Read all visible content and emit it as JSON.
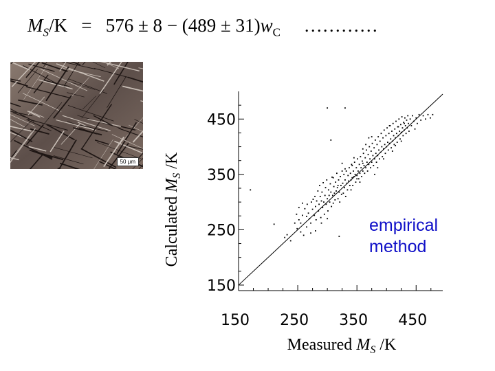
{
  "equation": {
    "lhs_symbol": "M",
    "lhs_subscript": "S",
    "lhs_unit": "/K",
    "equals": "=",
    "constant": "576 ± 8",
    "minus": " − ",
    "coefficient": "(489 ± 31)",
    "variable": "w",
    "variable_subscript": "C",
    "ellipsis": "…………"
  },
  "micrograph": {
    "scale_bar": "50 μm"
  },
  "annotation": {
    "line1": "empirical",
    "line2": "method",
    "color": "#1010c8"
  },
  "chart_data": {
    "type": "scatter",
    "title": "",
    "xlabel": "Measured M_S /K",
    "ylabel": "Calculated M_S /K",
    "xlabel_text": "Measured",
    "ylabel_text": "Calculated",
    "axis_symbol": "M",
    "axis_subscript": "S",
    "axis_unit": "/K",
    "xlim": [
      150,
      495
    ],
    "ylim": [
      140,
      500
    ],
    "xticks": [
      150,
      250,
      350,
      450
    ],
    "yticks": [
      150,
      250,
      350,
      450
    ],
    "grid": false,
    "legend": "none",
    "reference_line": {
      "from": [
        150,
        150
      ],
      "to": [
        495,
        495
      ],
      "label": ""
    },
    "point_color": "#000000",
    "series": [
      {
        "values_xy": [
          [
            170,
            322
          ],
          [
            210,
            260
          ],
          [
            228,
            236
          ],
          [
            238,
            230
          ],
          [
            232,
            241
          ],
          [
            245,
            262
          ],
          [
            249,
            252
          ],
          [
            252,
            268
          ],
          [
            255,
            262
          ],
          [
            258,
            276
          ],
          [
            260,
            240
          ],
          [
            262,
            288
          ],
          [
            265,
            255
          ],
          [
            266,
            296
          ],
          [
            268,
            280
          ],
          [
            270,
            270
          ],
          [
            272,
            262
          ],
          [
            273,
            300
          ],
          [
            275,
            287
          ],
          [
            276,
            305
          ],
          [
            278,
            276
          ],
          [
            279,
            310
          ],
          [
            280,
            292
          ],
          [
            281,
            268
          ],
          [
            282,
            302
          ],
          [
            284,
            320
          ],
          [
            285,
            284
          ],
          [
            286,
            296
          ],
          [
            287,
            330
          ],
          [
            288,
            310
          ],
          [
            289,
            272
          ],
          [
            290,
            302
          ],
          [
            291,
            318
          ],
          [
            292,
            290
          ],
          [
            293,
            335
          ],
          [
            294,
            300
          ],
          [
            295,
            278
          ],
          [
            296,
            312
          ],
          [
            297,
            326
          ],
          [
            298,
            296
          ],
          [
            299,
            340
          ],
          [
            300,
            306
          ],
          [
            301,
            284
          ],
          [
            302,
            322
          ],
          [
            303,
            312
          ],
          [
            304,
            300
          ],
          [
            305,
            333
          ],
          [
            306,
            318
          ],
          [
            307,
            292
          ],
          [
            308,
            345
          ],
          [
            309,
            312
          ],
          [
            310,
            298
          ],
          [
            311,
            328
          ],
          [
            312,
            316
          ],
          [
            313,
            304
          ],
          [
            314,
            336
          ],
          [
            315,
            320
          ],
          [
            316,
            352
          ],
          [
            317,
            326
          ],
          [
            318,
            306
          ],
          [
            319,
            340
          ],
          [
            320,
            318
          ],
          [
            321,
            300
          ],
          [
            322,
            346
          ],
          [
            323,
            330
          ],
          [
            324,
            314
          ],
          [
            325,
            356
          ],
          [
            326,
            334
          ],
          [
            327,
            316
          ],
          [
            328,
            350
          ],
          [
            329,
            326
          ],
          [
            330,
            340
          ],
          [
            331,
            310
          ],
          [
            332,
            356
          ],
          [
            333,
            334
          ],
          [
            334,
            322
          ],
          [
            335,
            348
          ],
          [
            336,
            338
          ],
          [
            337,
            362
          ],
          [
            338,
            330
          ],
          [
            339,
            352
          ],
          [
            340,
            340
          ],
          [
            341,
            368
          ],
          [
            342,
            344
          ],
          [
            343,
            330
          ],
          [
            344,
            356
          ],
          [
            345,
            346
          ],
          [
            346,
            372
          ],
          [
            347,
            350
          ],
          [
            348,
            336
          ],
          [
            349,
            362
          ],
          [
            350,
            348
          ],
          [
            351,
            378
          ],
          [
            352,
            356
          ],
          [
            353,
            342
          ],
          [
            354,
            368
          ],
          [
            355,
            352
          ],
          [
            356,
            382
          ],
          [
            357,
            362
          ],
          [
            358,
            346
          ],
          [
            359,
            374
          ],
          [
            360,
            356
          ],
          [
            361,
            388
          ],
          [
            362,
            366
          ],
          [
            363,
            352
          ],
          [
            364,
            380
          ],
          [
            365,
            362
          ],
          [
            366,
            394
          ],
          [
            367,
            372
          ],
          [
            368,
            356
          ],
          [
            369,
            386
          ],
          [
            370,
            368
          ],
          [
            371,
            400
          ],
          [
            372,
            378
          ],
          [
            373,
            362
          ],
          [
            374,
            392
          ],
          [
            375,
            372
          ],
          [
            376,
            406
          ],
          [
            377,
            384
          ],
          [
            378,
            366
          ],
          [
            379,
            398
          ],
          [
            380,
            378
          ],
          [
            381,
            412
          ],
          [
            382,
            388
          ],
          [
            383,
            372
          ],
          [
            384,
            404
          ],
          [
            385,
            384
          ],
          [
            386,
            418
          ],
          [
            387,
            394
          ],
          [
            388,
            378
          ],
          [
            389,
            410
          ],
          [
            390,
            390
          ],
          [
            391,
            424
          ],
          [
            392,
            400
          ],
          [
            393,
            382
          ],
          [
            394,
            416
          ],
          [
            395,
            396
          ],
          [
            396,
            430
          ],
          [
            397,
            404
          ],
          [
            398,
            388
          ],
          [
            399,
            420
          ],
          [
            400,
            400
          ],
          [
            401,
            434
          ],
          [
            402,
            408
          ],
          [
            403,
            394
          ],
          [
            404,
            424
          ],
          [
            405,
            406
          ],
          [
            406,
            438
          ],
          [
            407,
            414
          ],
          [
            408,
            398
          ],
          [
            409,
            428
          ],
          [
            410,
            410
          ],
          [
            411,
            442
          ],
          [
            412,
            420
          ],
          [
            413,
            404
          ],
          [
            414,
            432
          ],
          [
            415,
            416
          ],
          [
            416,
            446
          ],
          [
            417,
            424
          ],
          [
            418,
            408
          ],
          [
            419,
            436
          ],
          [
            420,
            420
          ],
          [
            421,
            450
          ],
          [
            422,
            428
          ],
          [
            423,
            414
          ],
          [
            424,
            440
          ],
          [
            425,
            426
          ],
          [
            426,
            454
          ],
          [
            427,
            434
          ],
          [
            428,
            420
          ],
          [
            429,
            444
          ],
          [
            430,
            430
          ],
          [
            431,
            452
          ],
          [
            432,
            438
          ],
          [
            433,
            424
          ],
          [
            434,
            448
          ],
          [
            435,
            434
          ],
          [
            436,
            456
          ],
          [
            437,
            442
          ],
          [
            438,
            428
          ],
          [
            440,
            450
          ],
          [
            442,
            438
          ],
          [
            444,
            456
          ],
          [
            446,
            446
          ],
          [
            448,
            432
          ],
          [
            450,
            452
          ],
          [
            452,
            442
          ],
          [
            455,
            458
          ],
          [
            458,
            448
          ],
          [
            462,
            456
          ],
          [
            466,
            450
          ],
          [
            470,
            458
          ],
          [
            474,
            452
          ],
          [
            478,
            458
          ],
          [
            300,
            470
          ],
          [
            330,
            470
          ],
          [
            320,
            238
          ],
          [
            306,
            412
          ],
          [
            342,
            366
          ],
          [
            350,
            342
          ],
          [
            360,
            396
          ],
          [
            365,
            404
          ],
          [
            370,
            416
          ],
          [
            375,
            418
          ],
          [
            380,
            350
          ],
          [
            385,
            362
          ],
          [
            395,
            378
          ],
          [
            405,
            438
          ],
          [
            410,
            392
          ],
          [
            415,
            402
          ],
          [
            420,
            436
          ],
          [
            425,
            410
          ],
          [
            430,
            442
          ],
          [
            340,
            322
          ],
          [
            345,
            380
          ],
          [
            355,
            336
          ],
          [
            360,
            370
          ],
          [
            330,
            360
          ],
          [
            325,
            370
          ],
          [
            318,
            330
          ],
          [
            310,
            344
          ],
          [
            300,
            270
          ],
          [
            290,
            262
          ],
          [
            280,
            248
          ],
          [
            272,
            244
          ],
          [
            265,
            274
          ],
          [
            258,
            298
          ],
          [
            252,
            290
          ],
          [
            248,
            278
          ],
          [
            255,
            246
          ]
        ]
      }
    ]
  }
}
